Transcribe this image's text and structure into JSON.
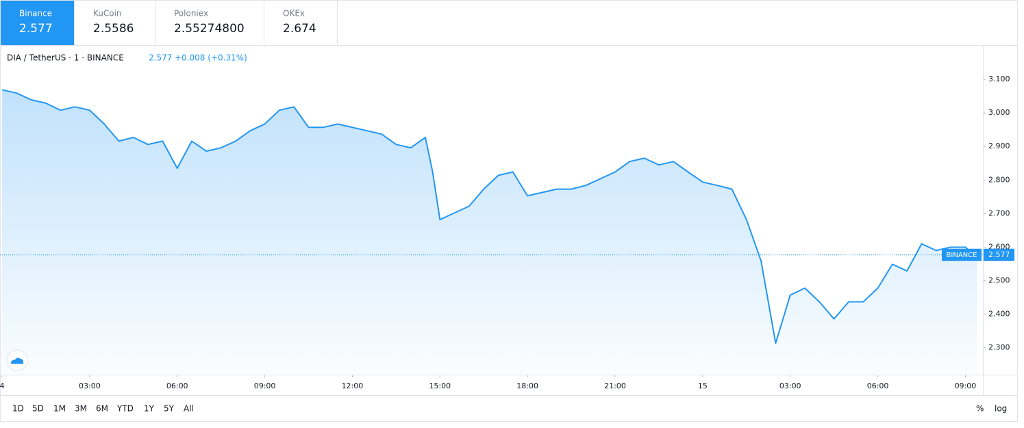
{
  "tabs": [
    {
      "name": "Binance",
      "price": "2.577"
    },
    {
      "name": "KuCoin",
      "price": "2.5586"
    },
    {
      "name": "Poloniex",
      "price": "2.55274800"
    },
    {
      "name": "OKEx",
      "price": "2.674"
    }
  ],
  "header": {
    "symbol": "DIA / TetherUS · 1 · BINANCE",
    "last": "2.577",
    "change": "+0.008 (+0.31%)"
  },
  "chart_data": {
    "type": "line",
    "color": "#2196f3",
    "grid": false,
    "x": [
      0,
      0.5,
      1,
      1.5,
      2,
      2.5,
      3,
      3.5,
      4,
      4.5,
      5,
      5.5,
      6,
      6.5,
      7,
      7.5,
      8,
      8.5,
      9,
      9.5,
      10,
      10.5,
      11,
      11.5,
      12,
      12.5,
      13,
      13.5,
      14,
      14.5,
      14.75,
      15,
      15.5,
      16,
      16.5,
      17,
      17.5,
      18,
      18.5,
      19,
      19.5,
      20,
      20.5,
      21,
      21.5,
      22,
      22.5,
      23,
      23.5,
      24,
      24.5,
      25,
      25.5,
      26,
      26.5,
      27,
      27.5,
      28,
      28.5,
      29,
      29.5,
      30,
      30.5,
      31,
      31.5,
      32,
      32.5,
      33,
      33.25,
      33.4
    ],
    "values": [
      3.069,
      3.059,
      3.039,
      3.029,
      3.008,
      3.018,
      3.008,
      2.967,
      2.916,
      2.927,
      2.906,
      2.916,
      2.835,
      2.916,
      2.886,
      2.896,
      2.916,
      2.947,
      2.967,
      3.008,
      3.018,
      2.957,
      2.957,
      2.967,
      2.957,
      2.947,
      2.937,
      2.906,
      2.896,
      2.927,
      2.824,
      2.682,
      2.702,
      2.722,
      2.773,
      2.814,
      2.824,
      2.753,
      2.763,
      2.773,
      2.773,
      2.784,
      2.804,
      2.824,
      2.855,
      2.865,
      2.845,
      2.855,
      2.824,
      2.794,
      2.784,
      2.773,
      2.682,
      2.559,
      2.314,
      2.457,
      2.478,
      2.437,
      2.386,
      2.437,
      2.437,
      2.478,
      2.549,
      2.529,
      2.61,
      2.59,
      2.6,
      2.6,
      2.58,
      2.577
    ],
    "xlim": [
      0,
      33.6
    ],
    "ylim": [
      2.22,
      3.2
    ],
    "xticks": [
      {
        "value": 0,
        "label": "4"
      },
      {
        "value": 3,
        "label": "03:00"
      },
      {
        "value": 6,
        "label": "06:00"
      },
      {
        "value": 9,
        "label": "09:00"
      },
      {
        "value": 12,
        "label": "12:00"
      },
      {
        "value": 15,
        "label": "15:00"
      },
      {
        "value": 18,
        "label": "18:00"
      },
      {
        "value": 21,
        "label": "21:00"
      },
      {
        "value": 24,
        "label": "15"
      },
      {
        "value": 27,
        "label": "03:00"
      },
      {
        "value": 30,
        "label": "06:00"
      },
      {
        "value": 33,
        "label": "09:00"
      }
    ],
    "yticks": [
      {
        "value": 2.3,
        "label": "2.300"
      },
      {
        "value": 2.4,
        "label": "2.400"
      },
      {
        "value": 2.5,
        "label": "2.500"
      },
      {
        "value": 2.6,
        "label": "2.600"
      },
      {
        "value": 2.7,
        "label": "2.700"
      },
      {
        "value": 2.8,
        "label": "2.800"
      },
      {
        "value": 2.9,
        "label": "2.900"
      },
      {
        "value": 3.0,
        "label": "3.000"
      },
      {
        "value": 3.1,
        "label": "3.100"
      }
    ],
    "price_line": {
      "label": "BINANCE",
      "value": 2.577
    }
  },
  "range_buttons": [
    "1D",
    "5D",
    "1M",
    "3M",
    "6M",
    "YTD",
    "1Y",
    "5Y",
    "All"
  ],
  "scale_toggles": [
    "%",
    "log"
  ]
}
